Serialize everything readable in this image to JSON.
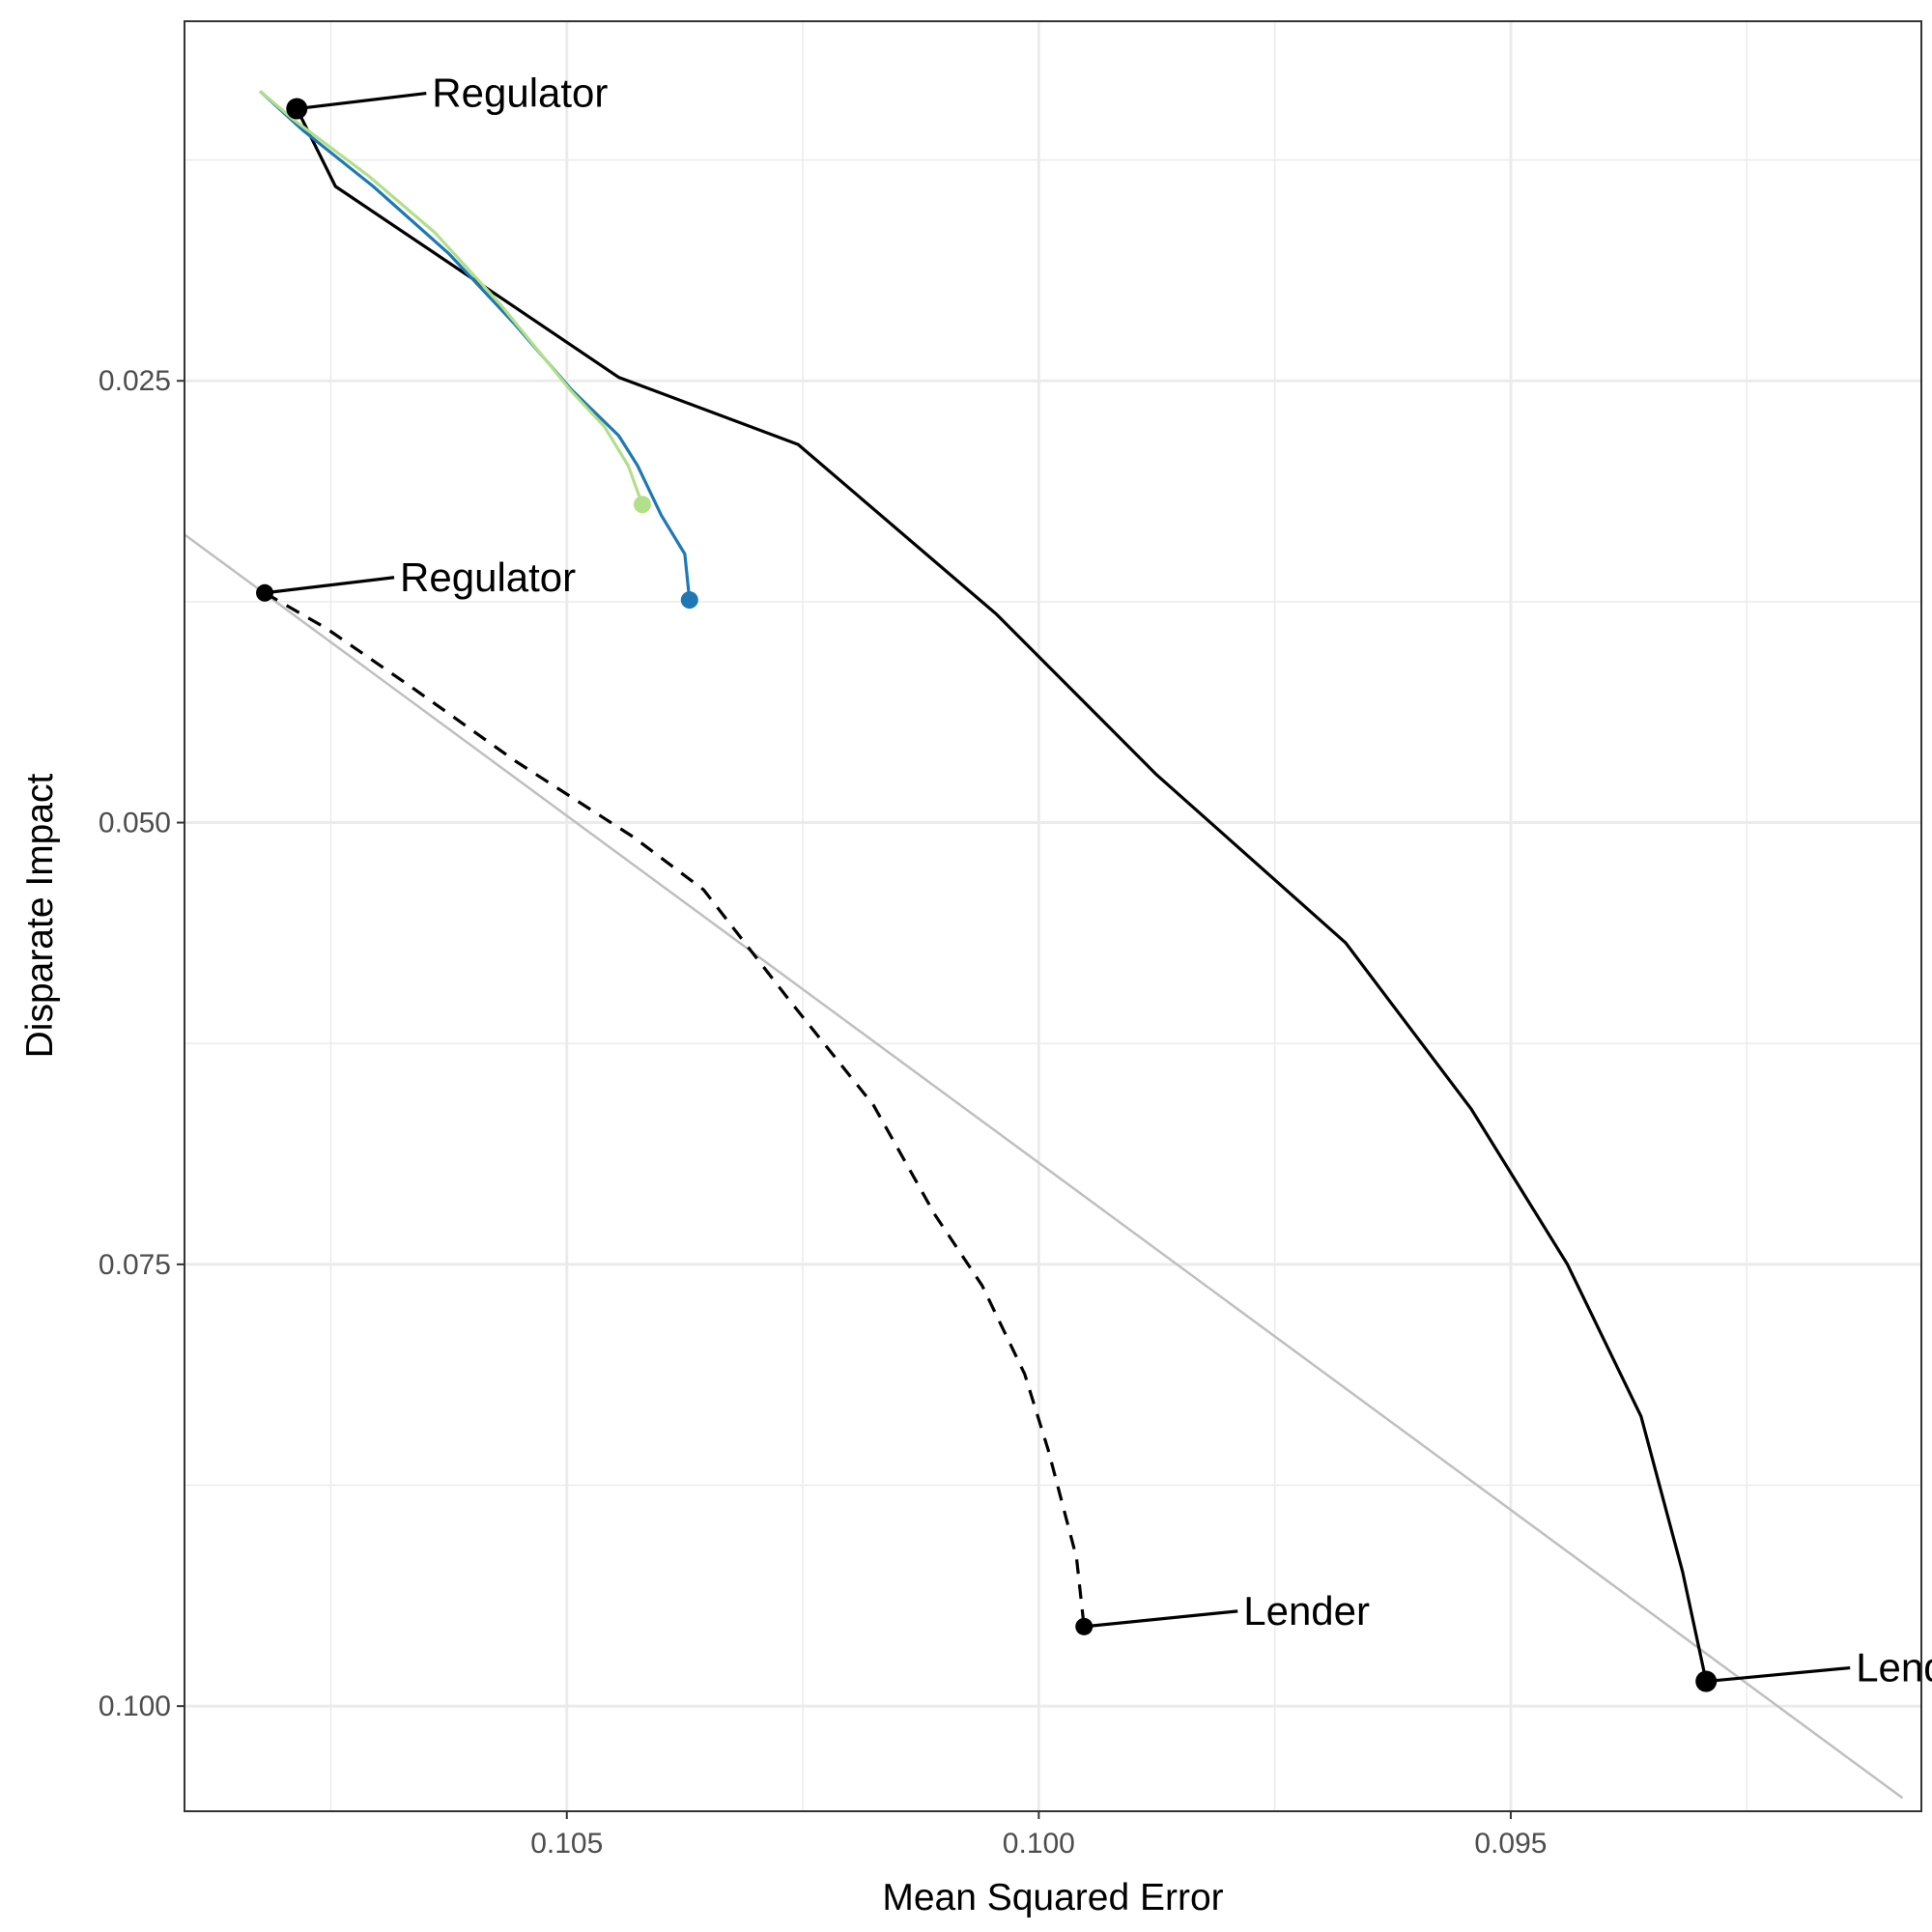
{
  "chart_data": {
    "type": "line",
    "title": "",
    "xlabel": "Mean Squared Error",
    "ylabel": "Disparate Impact",
    "x_reversed": true,
    "y_reversed": true,
    "xlim": [
      0.10905,
      0.09065
    ],
    "ylim": [
      0.00465,
      0.10595
    ],
    "x_ticks": [
      0.105,
      0.1,
      0.095
    ],
    "x_tick_labels": [
      "0.105",
      "0.100",
      "0.095"
    ],
    "y_ticks": [
      0.025,
      0.05,
      0.075,
      0.1
    ],
    "y_tick_labels": [
      "0.025",
      "0.050",
      "0.075",
      "0.100"
    ],
    "grid": true,
    "legend": "none",
    "colors": {
      "black": "#000000",
      "blue": "#1f78b4",
      "light_green": "#b2df8a",
      "reference": "#bfbfbf"
    },
    "series": [
      {
        "style": "solid",
        "color": "#000000",
        "x": [
          0.10786,
          0.10745,
          0.10578,
          0.10445,
          0.10255,
          0.10045,
          0.09875,
          0.09675,
          0.09542,
          0.0944,
          0.09362,
          0.09318,
          0.09293
        ],
        "y": [
          0.0096,
          0.014,
          0.02,
          0.0248,
          0.0286,
          0.0382,
          0.0473,
          0.0568,
          0.0662,
          0.075,
          0.0836,
          0.0924,
          0.0986
        ],
        "end_points": [
          0,
          12
        ]
      },
      {
        "style": "dashed",
        "color": "#000000",
        "x": [
          0.1082,
          0.10755,
          0.1066,
          0.10555,
          0.1043,
          0.10355,
          0.10265,
          0.10175,
          0.1011,
          0.1006,
          0.10015,
          0.0999,
          0.0996,
          0.09952
        ],
        "y": [
          0.037,
          0.039,
          0.0425,
          0.0465,
          0.0508,
          0.0538,
          0.06,
          0.066,
          0.0722,
          0.0762,
          0.0812,
          0.0855,
          0.0916,
          0.0955
        ],
        "end_points": [
          0,
          13
        ]
      },
      {
        "style": "solid",
        "color": "#1f78b4",
        "x": [
          0.10825,
          0.1078,
          0.10705,
          0.10625,
          0.10555,
          0.10495,
          0.10445,
          0.10425,
          0.104,
          0.10375,
          0.1037
        ],
        "y": [
          0.0086,
          0.0108,
          0.014,
          0.0178,
          0.0218,
          0.0255,
          0.0281,
          0.0298,
          0.0326,
          0.0348,
          0.0374
        ],
        "end_points": [
          10
        ]
      },
      {
        "style": "solid",
        "color": "#b2df8a",
        "x": [
          0.10825,
          0.1079,
          0.1071,
          0.1064,
          0.1057,
          0.10495,
          0.1046,
          0.10435,
          0.1042
        ],
        "y": [
          0.0086,
          0.0102,
          0.0134,
          0.0166,
          0.0207,
          0.0256,
          0.0276,
          0.0298,
          0.032
        ],
        "end_points": [
          8
        ]
      },
      {
        "style": "solid",
        "color": "#bfbfbf",
        "x": [
          0.10905,
          0.09085
        ],
        "y": [
          0.0337,
          0.1052
        ]
      }
    ],
    "annotations": [
      {
        "text": "Regulator",
        "x": 0.10786,
        "y": 0.0096
      },
      {
        "text": "Regulator",
        "x": 0.1082,
        "y": 0.037
      },
      {
        "text": "Lender",
        "x": 0.09952,
        "y": 0.0955
      },
      {
        "text": "Lender",
        "x": 0.09293,
        "y": 0.0986
      }
    ]
  }
}
